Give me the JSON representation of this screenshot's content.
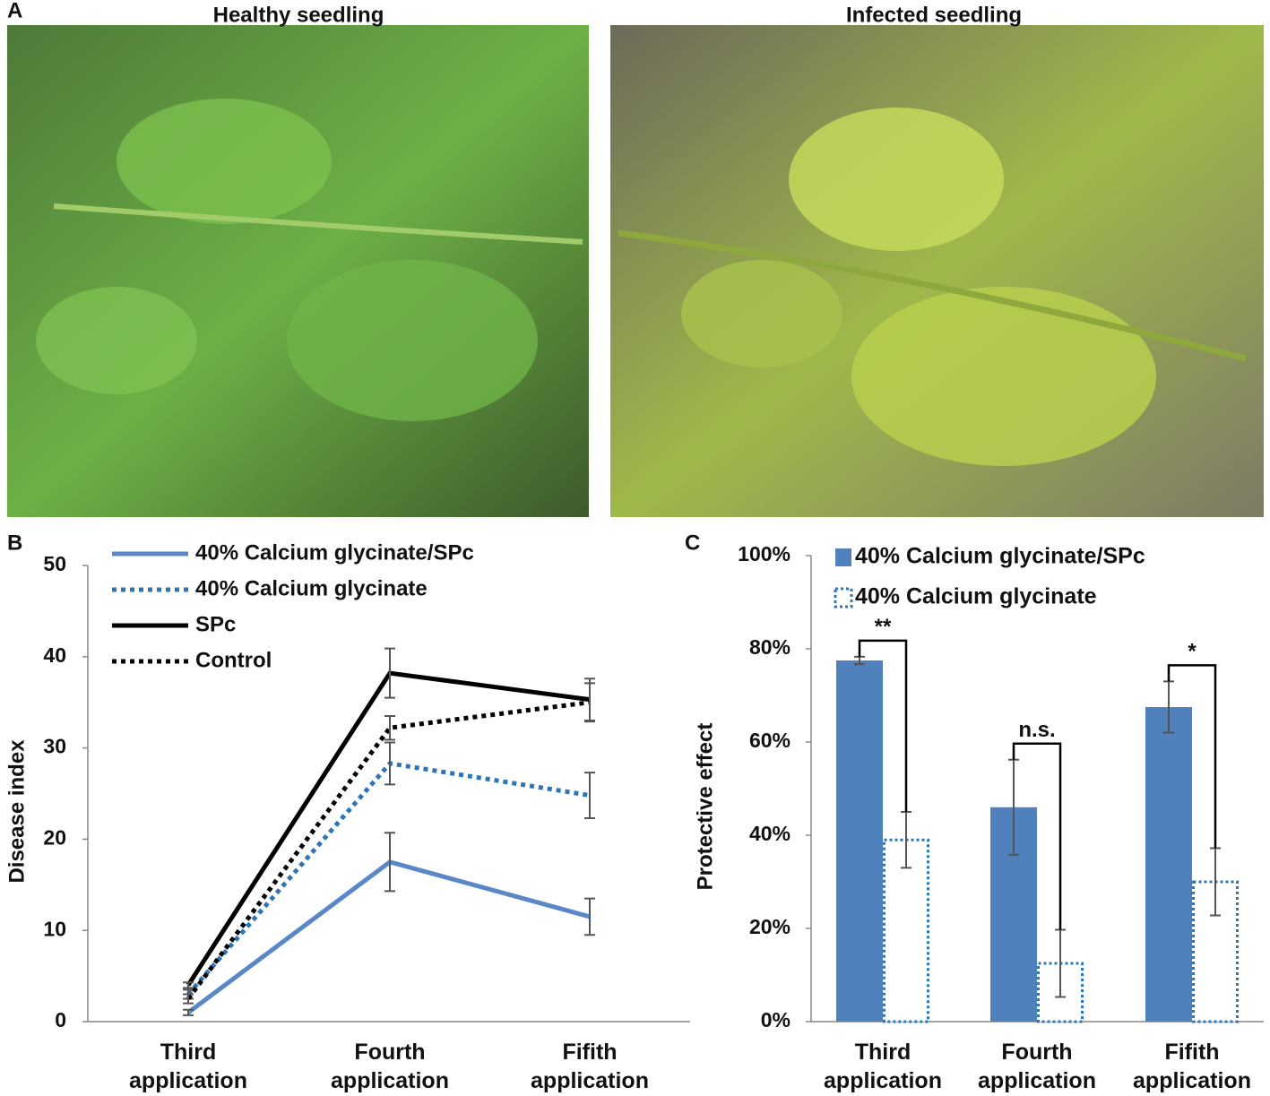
{
  "figure": {
    "panel_labels": [
      "A",
      "B",
      "C"
    ],
    "photo_captions": [
      "Healthy seedling",
      "Infected seedling"
    ]
  },
  "chart_data": [
    {
      "type": "line",
      "y_label": "Disease index",
      "categories": [
        "Third application",
        "Fourth application",
        "Fifith application"
      ],
      "ylim": [
        0,
        50
      ],
      "yticks": [
        0,
        10,
        20,
        30,
        40,
        50
      ],
      "series": [
        {
          "name": "40% Calcium glycinate/SPc",
          "color": "#5a87c8",
          "style": "solid",
          "values": [
            1,
            17.5,
            11.5
          ],
          "errors": [
            0.3,
            3.2,
            2
          ]
        },
        {
          "name": "40% Calcium glycinate",
          "color": "#2e75b6",
          "style": "dotted",
          "values": [
            3,
            28.3,
            24.8
          ],
          "errors": [
            0.5,
            2.3,
            2.5
          ]
        },
        {
          "name": "SPc",
          "color": "#000000",
          "style": "solid",
          "values": [
            4,
            38.2,
            35.3
          ],
          "errors": [
            0.3,
            2.7,
            2.3
          ]
        },
        {
          "name": "Control",
          "color": "#000000",
          "style": "dotted",
          "values": [
            2.5,
            32.2,
            35
          ],
          "errors": [
            0.5,
            1.3,
            2.1
          ]
        }
      ]
    },
    {
      "type": "bar",
      "y_label": "Protective effect",
      "categories": [
        "Third application",
        "Fourth application",
        "Fifith application"
      ],
      "ylim": [
        0,
        100
      ],
      "yticks": [
        {
          "value": 0,
          "label": "0%"
        },
        {
          "value": 20,
          "label": "20%"
        },
        {
          "value": 40,
          "label": "40%"
        },
        {
          "value": 60,
          "label": "60%"
        },
        {
          "value": 80,
          "label": "80%"
        },
        {
          "value": 100,
          "label": "100%"
        }
      ],
      "series": [
        {
          "name": "40% Calcium glycinate/SPc",
          "color": "#4f81bd",
          "style": "solid",
          "values": [
            77.5,
            46,
            67.5
          ],
          "errors": [
            0.8,
            10.2,
            5.5
          ]
        },
        {
          "name": "40% Calcium glycinate",
          "color": "#2e75b6",
          "style": "dotted",
          "values": [
            39,
            12.5,
            30
          ],
          "errors": [
            6,
            7.2,
            7.2
          ]
        }
      ],
      "annotations": [
        "**",
        "n.s.",
        "*"
      ]
    }
  ]
}
